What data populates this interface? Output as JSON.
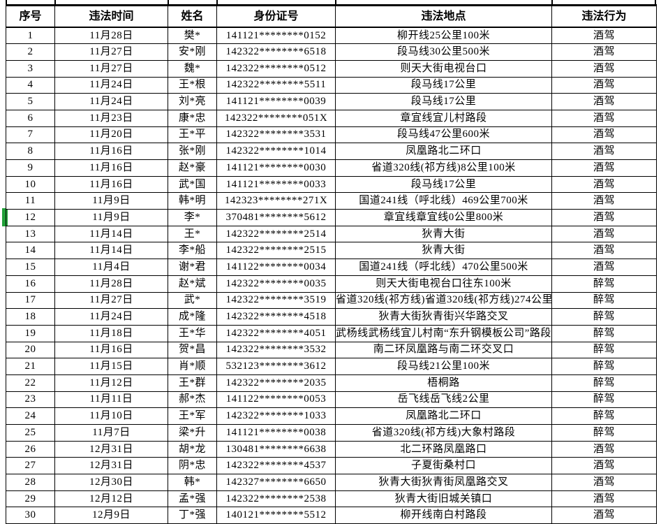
{
  "table": {
    "headers": [
      "序号",
      "违法时间",
      "姓名",
      "身份证号",
      "违法地点",
      "违法行为"
    ],
    "rows": [
      {
        "no": "1",
        "date": "11月28日",
        "name": "樊*",
        "id": "141121********0152",
        "location": "柳开线25公里100米",
        "behavior": "酒驾"
      },
      {
        "no": "2",
        "date": "11月27日",
        "name": "安*刚",
        "id": "142322********6518",
        "location": "段马线30公里500米",
        "behavior": "酒驾"
      },
      {
        "no": "3",
        "date": "11月27日",
        "name": "魏*",
        "id": "142322********0512",
        "location": "则天大街电视台口",
        "behavior": "酒驾"
      },
      {
        "no": "4",
        "date": "11月24日",
        "name": "王*根",
        "id": "142322********5511",
        "location": "段马线17公里",
        "behavior": "酒驾"
      },
      {
        "no": "5",
        "date": "11月24日",
        "name": "刘*亮",
        "id": "141121********0039",
        "location": "段马线17公里",
        "behavior": "酒驾"
      },
      {
        "no": "6",
        "date": "11月23日",
        "name": "康*忠",
        "id": "142322********051X",
        "location": "章宜线宜儿村路段",
        "behavior": "酒驾"
      },
      {
        "no": "7",
        "date": "11月20日",
        "name": "王*平",
        "id": "142322********3531",
        "location": "段马线47公里600米",
        "behavior": "酒驾"
      },
      {
        "no": "8",
        "date": "11月16日",
        "name": "张*刚",
        "id": "142322********1014",
        "location": "凤凰路北二环口",
        "behavior": "酒驾"
      },
      {
        "no": "9",
        "date": "11月16日",
        "name": "赵*豪",
        "id": "141121********0030",
        "location": "省道320线(祁方线)8公里100米",
        "behavior": "酒驾"
      },
      {
        "no": "10",
        "date": "11月16日",
        "name": "武*国",
        "id": "141121********0033",
        "location": "段马线17公里",
        "behavior": "酒驾"
      },
      {
        "no": "11",
        "date": "11月9日",
        "name": "韩*明",
        "id": "142323********271X",
        "location": "国道241线（呼北线）469公里700米",
        "behavior": "酒驾"
      },
      {
        "no": "12",
        "date": "11月9日",
        "name": "李*",
        "id": "370481********5612",
        "location": "章宜线章宜线0公里800米",
        "behavior": "酒驾"
      },
      {
        "no": "13",
        "date": "11月14日",
        "name": "王*",
        "id": "142322********2514",
        "location": "狄青大街",
        "behavior": "酒驾"
      },
      {
        "no": "14",
        "date": "11月14日",
        "name": "李*船",
        "id": "142322********2515",
        "location": "狄青大街",
        "behavior": "酒驾"
      },
      {
        "no": "15",
        "date": "11月4日",
        "name": "谢*君",
        "id": "141122********0034",
        "location": "国道241线（呼北线）470公里500米",
        "behavior": "酒驾"
      },
      {
        "no": "16",
        "date": "11月28日",
        "name": "赵*斌",
        "id": "142322********0035",
        "location": "则天大街电视台口往东100米",
        "behavior": "醉驾"
      },
      {
        "no": "17",
        "date": "11月27日",
        "name": "武*",
        "id": "142322********3519",
        "location": "省道320线(祁方线)省道320线(祁方线)274公里",
        "behavior": "醉驾"
      },
      {
        "no": "18",
        "date": "11月24日",
        "name": "成*隆",
        "id": "142322********4518",
        "location": "狄青大街狄青街兴华路交叉",
        "behavior": "醉驾"
      },
      {
        "no": "19",
        "date": "11月18日",
        "name": "王*华",
        "id": "142322********4051",
        "location": "武杨线武杨线宜儿村南“东升钢模板公司”路段",
        "behavior": "醉驾"
      },
      {
        "no": "20",
        "date": "11月16日",
        "name": "贺*昌",
        "id": "142322********3532",
        "location": "南二环凤凰路与南二环交叉口",
        "behavior": "醉驾"
      },
      {
        "no": "21",
        "date": "11月15日",
        "name": "肖*顺",
        "id": "532123********3612",
        "location": "段马线21公里100米",
        "behavior": "醉驾"
      },
      {
        "no": "22",
        "date": "11月12日",
        "name": "王*群",
        "id": "142322********2035",
        "location": "梧桐路",
        "behavior": "醉驾"
      },
      {
        "no": "23",
        "date": "11月11日",
        "name": "郝*杰",
        "id": "141122********0053",
        "location": "岳飞线岳飞线2公里",
        "behavior": "醉驾"
      },
      {
        "no": "24",
        "date": "11月10日",
        "name": "王*军",
        "id": "142322********1033",
        "location": "凤凰路北二环口",
        "behavior": "醉驾"
      },
      {
        "no": "25",
        "date": "11月7日",
        "name": "梁*升",
        "id": "141121********0038",
        "location": "省道320线(祁方线)大象村路段",
        "behavior": "醉驾"
      },
      {
        "no": "26",
        "date": "12月31日",
        "name": "胡*龙",
        "id": "130481********6638",
        "location": "北二环路凤凰路口",
        "behavior": "酒驾"
      },
      {
        "no": "27",
        "date": "12月31日",
        "name": "阴*忠",
        "id": "142322********4537",
        "location": "子夏街桑村口",
        "behavior": "酒驾"
      },
      {
        "no": "28",
        "date": "12月30日",
        "name": "韩*",
        "id": "142327********6650",
        "location": "狄青大街狄青街凤凰路交叉",
        "behavior": "酒驾"
      },
      {
        "no": "29",
        "date": "12月12日",
        "name": "孟*强",
        "id": "142322********2538",
        "location": "狄青大街旧城关镇口",
        "behavior": "酒驾"
      },
      {
        "no": "30",
        "date": "12月9日",
        "name": "丁*强",
        "id": "140121********5512",
        "location": "柳开线南白村路段",
        "behavior": "酒驾"
      }
    ],
    "selected_row_no": "12"
  },
  "colors": {
    "grid": "#000000",
    "background": "#ffffff",
    "selection_green": "#21a038"
  },
  "layout_markers": {
    "column_border_stub_positions": [
      8,
      78,
      240,
      310,
      480,
      790,
      938
    ]
  }
}
